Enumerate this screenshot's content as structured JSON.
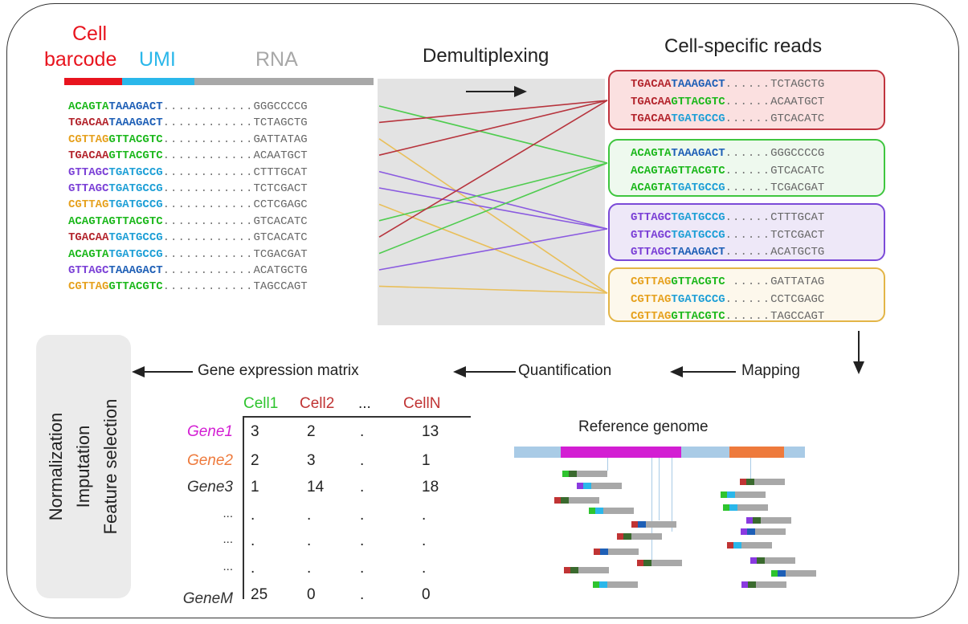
{
  "colors": {
    "barcode_red": "#e8141e",
    "umi_blue": "#2ab7ea",
    "rna_gray": "#a8a8a8",
    "seq_green": "#1cb81c",
    "seq_darkred": "#b3252d",
    "seq_orange": "#e6a11e",
    "seq_purple": "#7a3fd6",
    "seq_navy": "#1e5fb6",
    "seq_sky": "#1e9fd6",
    "box_red": "#c0343e",
    "box_green": "#3fc63f",
    "box_purple": "#7b4ad8",
    "box_orange": "#e3b547",
    "gene1": "#d31ed3",
    "gene2": "#ee7a3c",
    "cell1": "#2ec42e",
    "cell2": "#c03434"
  },
  "header": {
    "cell_label": "Cell",
    "barcode_label": "barcode",
    "umi_label": "UMI",
    "rna_label": "RNA",
    "demux_label": "Demultiplexing",
    "cell_specific_label": "Cell-specific reads"
  },
  "reads": [
    {
      "bc": "ACAGTA",
      "bc_color": "green",
      "umi": "TAAAGACT",
      "umi_color": "navy",
      "dots": "............",
      "rna": "GGGCCCCG"
    },
    {
      "bc": "TGACAA",
      "bc_color": "darkred",
      "umi": "TAAAGACT",
      "umi_color": "navy",
      "dots": "............",
      "rna": "TCTAGCTG"
    },
    {
      "bc": "CGTTAG",
      "bc_color": "orange",
      "umi": "GTTACGTC",
      "umi_color": "green",
      "dots": "............",
      "rna": "GATTATAG"
    },
    {
      "bc": "TGACAA",
      "bc_color": "darkred",
      "umi": "GTTACGTC",
      "umi_color": "green",
      "dots": "............",
      "rna": "ACAATGCT"
    },
    {
      "bc": "GTTAGC",
      "bc_color": "purple",
      "umi": "TGATGCCG",
      "umi_color": "sky",
      "dots": "............",
      "rna": "CTTTGCAT"
    },
    {
      "bc": "GTTAGC",
      "bc_color": "purple",
      "umi": "TGATGCCG",
      "umi_color": "sky",
      "dots": "............",
      "rna": "TCTCGACT"
    },
    {
      "bc": "CGTTAG",
      "bc_color": "orange",
      "umi": "TGATGCCG",
      "umi_color": "sky",
      "dots": "............",
      "rna": "CCTCGAGC"
    },
    {
      "bc": "ACAGTA",
      "bc_color": "green",
      "umi": "GTTACGTC",
      "umi_color": "green",
      "dots": "............",
      "rna": "GTCACATC"
    },
    {
      "bc": "TGACAA",
      "bc_color": "darkred",
      "umi": "TGATGCCG",
      "umi_color": "sky",
      "dots": "............",
      "rna": "GTCACATC"
    },
    {
      "bc": "ACAGTA",
      "bc_color": "green",
      "umi": "TGATGCCG",
      "umi_color": "sky",
      "dots": "............",
      "rna": "TCGACGAT"
    },
    {
      "bc": "GTTAGC",
      "bc_color": "purple",
      "umi": "TAAAGACT",
      "umi_color": "navy",
      "dots": "............",
      "rna": "ACATGCTG"
    },
    {
      "bc": "CGTTAG",
      "bc_color": "orange",
      "umi": "GTTACGTC",
      "umi_color": "green",
      "dots": "............",
      "rna": "TAGCCAGT"
    }
  ],
  "groups": [
    {
      "color": "red",
      "reads": [
        {
          "bc": "TGACAA",
          "bc_color": "darkred",
          "umi": "TAAAGACT",
          "umi_color": "navy",
          "dots": "......",
          "rna": "TCTAGCTG"
        },
        {
          "bc": "TGACAA",
          "bc_color": "darkred",
          "umi": "GTTACGTC",
          "umi_color": "green",
          "dots": "......",
          "rna": "ACAATGCT"
        },
        {
          "bc": "TGACAA",
          "bc_color": "darkred",
          "umi": "TGATGCCG",
          "umi_color": "sky",
          "dots": "......",
          "rna": "GTCACATC"
        }
      ]
    },
    {
      "color": "green",
      "reads": [
        {
          "bc": "ACAGTA",
          "bc_color": "green",
          "umi": "TAAAGACT",
          "umi_color": "navy",
          "dots": "......",
          "rna": "GGGCCCCG"
        },
        {
          "bc": "ACAGTA",
          "bc_color": "green",
          "umi": "GTTACGTC",
          "umi_color": "green",
          "dots": "......",
          "rna": "GTCACATC"
        },
        {
          "bc": "ACAGTA",
          "bc_color": "green",
          "umi": "TGATGCCG",
          "umi_color": "sky",
          "dots": "......",
          "rna": "TCGACGAT"
        }
      ]
    },
    {
      "color": "purple",
      "reads": [
        {
          "bc": "GTTAGC",
          "bc_color": "purple",
          "umi": "TGATGCCG",
          "umi_color": "sky",
          "dots": "......",
          "rna": "CTTTGCAT"
        },
        {
          "bc": "GTTAGC",
          "bc_color": "purple",
          "umi": "TGATGCCG",
          "umi_color": "sky",
          "dots": "......",
          "rna": "TCTCGACT"
        },
        {
          "bc": "GTTAGC",
          "bc_color": "purple",
          "umi": "TAAAGACT",
          "umi_color": "navy",
          "dots": "......",
          "rna": "ACATGCTG"
        }
      ]
    },
    {
      "color": "orange",
      "reads": [
        {
          "bc": "CGTTAG",
          "bc_color": "orange",
          "umi": "GTTACGTC",
          "umi_color": "green",
          "dots": " .....",
          "rna": "GATTATAG"
        },
        {
          "bc": "CGTTAG",
          "bc_color": "orange",
          "umi": "TGATGCCG",
          "umi_color": "sky",
          "dots": "......",
          "rna": "CCTCGAGC"
        },
        {
          "bc": "CGTTAG",
          "bc_color": "orange",
          "umi": "GTTACGTC",
          "umi_color": "green",
          "dots": "......",
          "rna": "TAGCCAGT"
        }
      ]
    }
  ],
  "connections": [
    {
      "from": 0,
      "group": 1,
      "color": "green"
    },
    {
      "from": 1,
      "group": 0,
      "color": "darkred"
    },
    {
      "from": 2,
      "group": 3,
      "color": "orange"
    },
    {
      "from": 3,
      "group": 0,
      "color": "darkred"
    },
    {
      "from": 4,
      "group": 2,
      "color": "purple"
    },
    {
      "from": 5,
      "group": 2,
      "color": "purple"
    },
    {
      "from": 6,
      "group": 3,
      "color": "orange"
    },
    {
      "from": 7,
      "group": 1,
      "color": "green"
    },
    {
      "from": 8,
      "group": 0,
      "color": "darkred"
    },
    {
      "from": 9,
      "group": 1,
      "color": "green"
    },
    {
      "from": 10,
      "group": 2,
      "color": "purple"
    },
    {
      "from": 11,
      "group": 3,
      "color": "orange"
    }
  ],
  "flow": {
    "gene_expression_matrix": "Gene expression matrix",
    "quantification": "Quantification",
    "mapping": "Mapping"
  },
  "postprocess": {
    "normalization": "Normalization",
    "imputation": "Imputation",
    "feature_selection": "Feature selection"
  },
  "matrix": {
    "columns": [
      "Cell1",
      "Cell2",
      "...",
      "CellN"
    ],
    "rows": [
      {
        "gene": "Gene1",
        "values": [
          "3",
          "2",
          ".",
          "13"
        ]
      },
      {
        "gene": "Gene2",
        "values": [
          "2",
          "3",
          ".",
          "1"
        ]
      },
      {
        "gene": "Gene3",
        "values": [
          "1",
          "14",
          ".",
          "18"
        ]
      },
      {
        "gene": "...",
        "values": [
          ".",
          ".",
          ".",
          "."
        ]
      },
      {
        "gene": "...",
        "values": [
          ".",
          ".",
          ".",
          "."
        ]
      },
      {
        "gene": "...",
        "values": [
          ".",
          ".",
          ".",
          "."
        ]
      },
      {
        "gene": "GeneM",
        "values": [
          "25",
          "0",
          ".",
          "0"
        ]
      }
    ]
  },
  "reference": {
    "label": "Reference genome"
  }
}
